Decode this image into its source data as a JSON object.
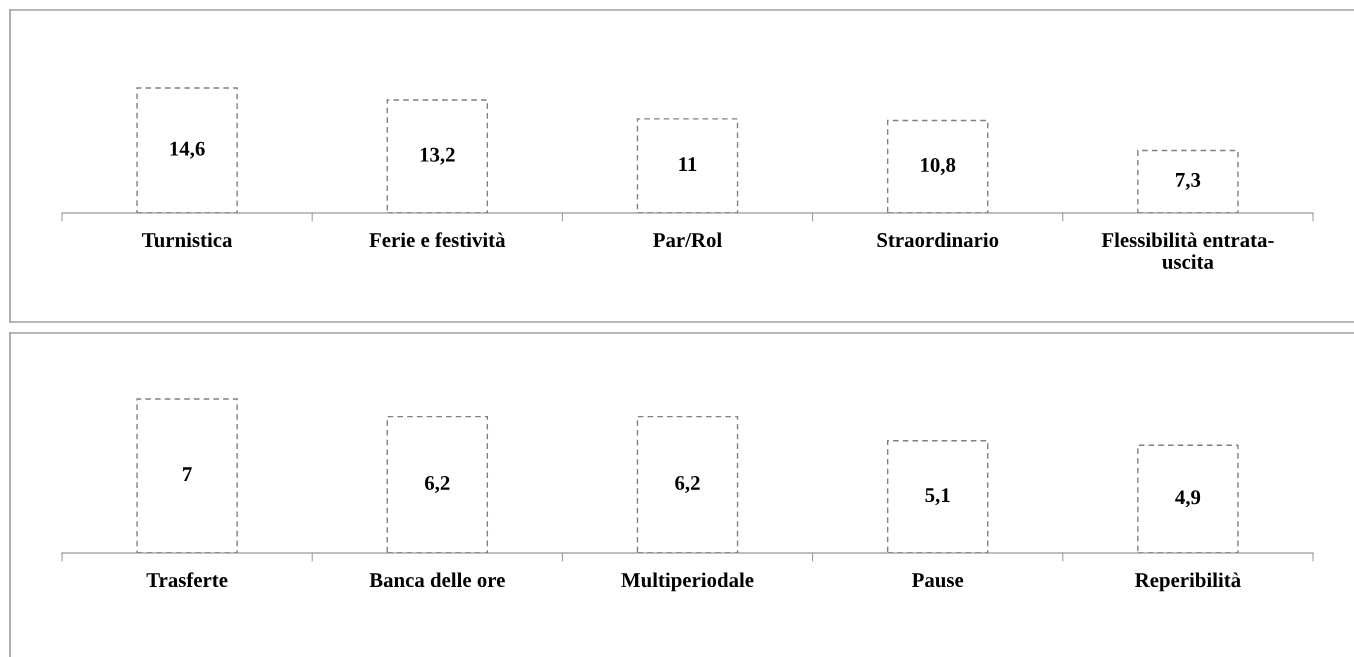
{
  "chart_data": [
    {
      "type": "bar",
      "relative": false,
      "categories": [
        "Turnistica",
        "Ferie e festività",
        "Par/Rol",
        "Straordinario",
        "Flessibilità entrata-\nuscita"
      ],
      "values": [
        14.6,
        13.2,
        11,
        10.8,
        7.3
      ],
      "value_labels": [
        "14,6",
        "13,2",
        "11",
        "10,8",
        "7,3"
      ],
      "color": "#ffffff",
      "line_style": "dashed",
      "tick_labels": "x"
    },
    {
      "type": "bar",
      "relative": false,
      "categories": [
        "Trasferte",
        "Banca delle ore",
        "Multiperiodale",
        "Pause",
        "Reperibilità"
      ],
      "values": [
        7,
        6.2,
        6.2,
        5.1,
        4.9
      ],
      "value_labels": [
        "7",
        "6,2",
        "6,2",
        "5,1",
        "4,9"
      ],
      "color": "#ffffff",
      "line_style": "dashed",
      "tick_labels": "x"
    }
  ]
}
